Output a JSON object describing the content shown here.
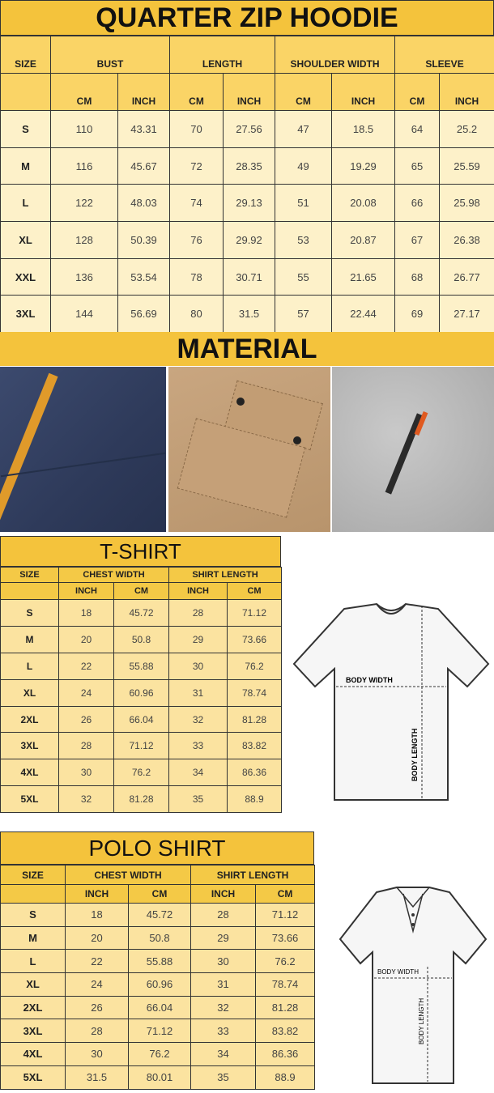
{
  "hoodie": {
    "title": "QUARTER ZIP HOODIE",
    "headers": [
      "SIZE",
      "BUST",
      "LENGTH",
      "SHOULDER WIDTH",
      "SLEEVE"
    ],
    "subheaders": [
      "CM",
      "INCH",
      "CM",
      "INCH",
      "CM",
      "INCH",
      "CM",
      "INCH"
    ],
    "rows": [
      [
        "S",
        "110",
        "43.31",
        "70",
        "27.56",
        "47",
        "18.5",
        "64",
        "25.2"
      ],
      [
        "M",
        "116",
        "45.67",
        "72",
        "28.35",
        "49",
        "19.29",
        "65",
        "25.59"
      ],
      [
        "L",
        "122",
        "48.03",
        "74",
        "29.13",
        "51",
        "20.08",
        "66",
        "25.98"
      ],
      [
        "XL",
        "128",
        "50.39",
        "76",
        "29.92",
        "53",
        "20.87",
        "67",
        "26.38"
      ],
      [
        "XXL",
        "136",
        "53.54",
        "78",
        "30.71",
        "55",
        "21.65",
        "68",
        "26.77"
      ],
      [
        "3XL",
        "144",
        "56.69",
        "80",
        "31.5",
        "57",
        "22.44",
        "69",
        "27.17"
      ]
    ]
  },
  "material": {
    "title": "MATERIAL"
  },
  "tshirt": {
    "title": "T-SHIRT",
    "headers": [
      "SIZE",
      "CHEST WIDTH",
      "SHIRT LENGTH"
    ],
    "subheaders": [
      "INCH",
      "CM",
      "INCH",
      "CM"
    ],
    "rows": [
      [
        "S",
        "18",
        "45.72",
        "28",
        "71.12"
      ],
      [
        "M",
        "20",
        "50.8",
        "29",
        "73.66"
      ],
      [
        "L",
        "22",
        "55.88",
        "30",
        "76.2"
      ],
      [
        "XL",
        "24",
        "60.96",
        "31",
        "78.74"
      ],
      [
        "2XL",
        "26",
        "66.04",
        "32",
        "81.28"
      ],
      [
        "3XL",
        "28",
        "71.12",
        "33",
        "83.82"
      ],
      [
        "4XL",
        "30",
        "76.2",
        "34",
        "86.36"
      ],
      [
        "5XL",
        "32",
        "81.28",
        "35",
        "88.9"
      ]
    ],
    "diagram": {
      "width_label": "BODY WIDTH",
      "length_label": "BODY LENGTH"
    }
  },
  "polo": {
    "title": "POLO SHIRT",
    "headers": [
      "SIZE",
      "CHEST WIDTH",
      "SHIRT LENGTH"
    ],
    "subheaders": [
      "INCH",
      "CM",
      "INCH",
      "CM"
    ],
    "rows": [
      [
        "S",
        "18",
        "45.72",
        "28",
        "71.12"
      ],
      [
        "M",
        "20",
        "50.8",
        "29",
        "73.66"
      ],
      [
        "L",
        "22",
        "55.88",
        "30",
        "76.2"
      ],
      [
        "XL",
        "24",
        "60.96",
        "31",
        "78.74"
      ],
      [
        "2XL",
        "26",
        "66.04",
        "32",
        "81.28"
      ],
      [
        "3XL",
        "28",
        "71.12",
        "33",
        "83.82"
      ],
      [
        "4XL",
        "30",
        "76.2",
        "34",
        "86.36"
      ],
      [
        "5XL",
        "31.5",
        "80.01",
        "35",
        "88.9"
      ]
    ],
    "diagram": {
      "width_label": "BODY WIDTH",
      "length_label": "BODY LENGTH"
    }
  },
  "colors": {
    "title_yellow": "#f4c33c",
    "header_yellow": "#f7cf55",
    "cell_cream": "#fdf1c9",
    "cell_yellow": "#fbe3a0"
  }
}
